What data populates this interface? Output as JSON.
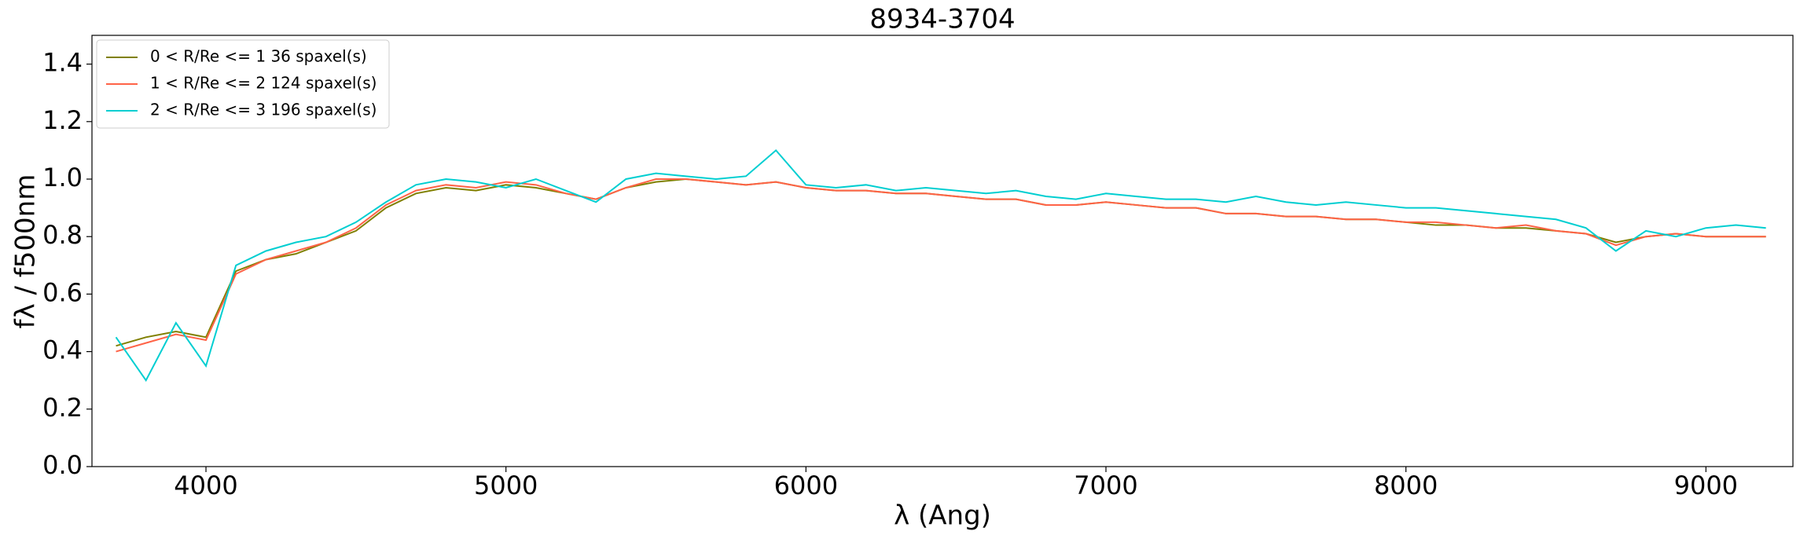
{
  "chart_data": {
    "type": "line",
    "title": "8934-3704",
    "xlabel": "λ (Ang)",
    "ylabel": "fλ / f500nm",
    "x": [
      3700,
      3800,
      3900,
      4000,
      4100,
      4200,
      4300,
      4400,
      4500,
      4600,
      4700,
      4800,
      4900,
      5000,
      5100,
      5200,
      5300,
      5400,
      5500,
      5600,
      5700,
      5800,
      5900,
      6000,
      6100,
      6200,
      6300,
      6400,
      6500,
      6600,
      6700,
      6800,
      6900,
      7000,
      7100,
      7200,
      7300,
      7400,
      7500,
      7600,
      7700,
      7800,
      7900,
      8000,
      8100,
      8200,
      8300,
      8400,
      8500,
      8600,
      8700,
      8800,
      8900,
      9000,
      9100,
      9200
    ],
    "series": [
      {
        "name": "0 < R/Re <= 1 36 spaxel(s)",
        "color": "#808000",
        "values": [
          0.42,
          0.45,
          0.47,
          0.45,
          0.68,
          0.72,
          0.74,
          0.78,
          0.82,
          0.9,
          0.95,
          0.97,
          0.96,
          0.98,
          0.97,
          0.95,
          0.93,
          0.97,
          0.99,
          1.0,
          0.99,
          0.98,
          0.99,
          0.97,
          0.96,
          0.96,
          0.95,
          0.95,
          0.94,
          0.93,
          0.93,
          0.91,
          0.91,
          0.92,
          0.91,
          0.9,
          0.9,
          0.88,
          0.88,
          0.87,
          0.87,
          0.86,
          0.86,
          0.85,
          0.84,
          0.84,
          0.83,
          0.83,
          0.82,
          0.81,
          0.78,
          0.8,
          0.81,
          0.8,
          0.8,
          0.8
        ]
      },
      {
        "name": "1 < R/Re <= 2 124 spaxel(s)",
        "color": "#ff6347",
        "values": [
          0.4,
          0.43,
          0.46,
          0.44,
          0.67,
          0.72,
          0.75,
          0.78,
          0.83,
          0.91,
          0.96,
          0.98,
          0.97,
          0.99,
          0.98,
          0.95,
          0.93,
          0.97,
          1.0,
          1.0,
          0.99,
          0.98,
          0.99,
          0.97,
          0.96,
          0.96,
          0.95,
          0.95,
          0.94,
          0.93,
          0.93,
          0.91,
          0.91,
          0.92,
          0.91,
          0.9,
          0.9,
          0.88,
          0.88,
          0.87,
          0.87,
          0.86,
          0.86,
          0.85,
          0.85,
          0.84,
          0.83,
          0.84,
          0.82,
          0.81,
          0.77,
          0.8,
          0.81,
          0.8,
          0.8,
          0.8
        ]
      },
      {
        "name": "2 < R/Re <= 3 196 spaxel(s)",
        "color": "#00ced1",
        "values": [
          0.45,
          0.3,
          0.5,
          0.35,
          0.7,
          0.75,
          0.78,
          0.8,
          0.85,
          0.92,
          0.98,
          1.0,
          0.99,
          0.97,
          1.0,
          0.96,
          0.92,
          1.0,
          1.02,
          1.01,
          1.0,
          1.01,
          1.1,
          0.98,
          0.97,
          0.98,
          0.96,
          0.97,
          0.96,
          0.95,
          0.96,
          0.94,
          0.93,
          0.95,
          0.94,
          0.93,
          0.93,
          0.92,
          0.94,
          0.92,
          0.91,
          0.92,
          0.91,
          0.9,
          0.9,
          0.89,
          0.88,
          0.87,
          0.86,
          0.83,
          0.75,
          0.82,
          0.8,
          0.83,
          0.84,
          0.83
        ]
      }
    ],
    "xlim": [
      3620,
      9290
    ],
    "ylim": [
      0,
      1.5
    ],
    "xticks": [
      4000,
      5000,
      6000,
      7000,
      8000,
      9000
    ],
    "yticks": [
      {
        "value": 0,
        "label": "0.0"
      },
      0.2,
      0.4,
      0.6,
      0.8,
      {
        "value": 1,
        "label": "1.0"
      },
      1.2,
      1.4
    ],
    "legend": "upper left"
  }
}
